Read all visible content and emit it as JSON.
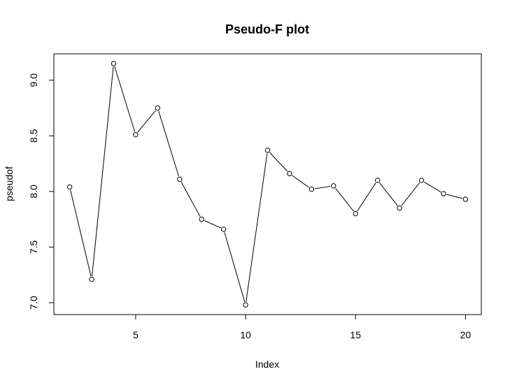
{
  "chart_data": {
    "type": "line",
    "title": "Pseudo-F plot",
    "xlabel": "Index",
    "ylabel": "pseudof",
    "x": [
      2,
      3,
      4,
      5,
      6,
      7,
      8,
      9,
      10,
      11,
      12,
      13,
      14,
      15,
      16,
      17,
      18,
      19,
      20
    ],
    "series": [
      {
        "values": [
          8.04,
          7.21,
          9.15,
          8.51,
          8.75,
          8.11,
          7.75,
          7.66,
          6.98,
          8.37,
          8.16,
          8.02,
          8.05,
          7.8,
          8.1,
          7.85,
          8.1,
          7.98,
          7.93
        ],
        "marker": "open-circle",
        "line_color": "#000000"
      }
    ],
    "xlim": [
      1.28,
      20.72
    ],
    "ylim": [
      6.893,
      9.237
    ],
    "x_ticks": [
      5,
      10,
      15,
      20
    ],
    "x_tick_labels": [
      "5",
      "10",
      "15",
      "20"
    ],
    "y_ticks": [
      7.0,
      7.5,
      8.0,
      8.5,
      9.0
    ],
    "y_tick_labels": [
      "7.0",
      "7.5",
      "8.0",
      "8.5",
      "9.0"
    ],
    "grid": false,
    "legend": "none"
  }
}
